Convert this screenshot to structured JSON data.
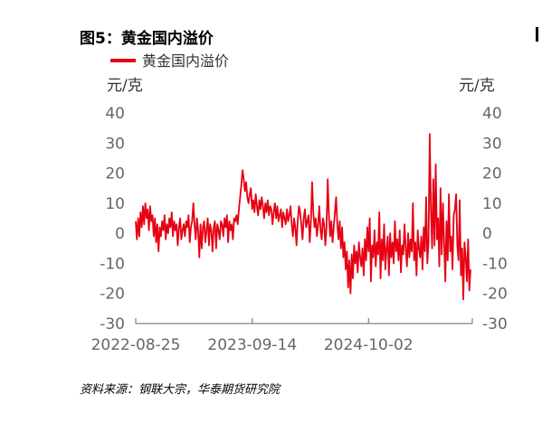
{
  "title": "图5：黄金国内溢价",
  "source": "资料来源：钢联大宗，华泰期货研究院",
  "chart_data": {
    "type": "line",
    "ylabel_left": "元/克",
    "ylabel_right": "元/克",
    "ylim": [
      -30,
      40
    ],
    "yticks": [
      "40",
      "30",
      "20",
      "10",
      "0",
      "-10",
      "-20",
      "-30"
    ],
    "xticks": [
      "2022-08-25",
      "2023-09-14",
      "2024-10-02"
    ],
    "legend": "top-left",
    "series": [
      {
        "name": "黄金国内溢价",
        "color": "#e60012",
        "x_range": [
          "2022-08-25",
          "2025-09-10"
        ],
        "values": [
          4,
          -2,
          5,
          -1,
          7,
          2,
          9,
          3,
          10,
          5,
          8,
          1,
          9,
          4,
          6,
          -1,
          5,
          -3,
          3,
          -6,
          2,
          -1,
          4,
          1,
          6,
          -2,
          3,
          0,
          5,
          2,
          7,
          -1,
          4,
          1,
          3,
          -4,
          2,
          5,
          -2,
          1,
          3,
          -1,
          4,
          2,
          6,
          -3,
          2,
          4,
          10,
          3,
          -2,
          5,
          1,
          -8,
          3,
          -5,
          2,
          4,
          -3,
          1,
          5,
          -4,
          3,
          1,
          -6,
          2,
          4,
          -5,
          3,
          1,
          -2,
          4,
          3,
          -1,
          5,
          2,
          6,
          -3,
          4,
          1,
          3,
          -2,
          5,
          4,
          6,
          3,
          8,
          12,
          16,
          21,
          18,
          14,
          17,
          12,
          10,
          13,
          15,
          8,
          11,
          7,
          13,
          9,
          6,
          11,
          8,
          12,
          9,
          5,
          10,
          7,
          11,
          6,
          9,
          8,
          3,
          7,
          10,
          5,
          9,
          4,
          6,
          8,
          2,
          7,
          5,
          3,
          8,
          4,
          6,
          9,
          3,
          -1,
          5,
          2,
          -4,
          4,
          9,
          7,
          3,
          -2,
          5,
          8,
          2,
          4,
          6,
          -3,
          4,
          17,
          7,
          2,
          5,
          -1,
          3,
          9,
          1,
          -2,
          5,
          3,
          -4,
          2,
          18,
          6,
          -1,
          4,
          -3,
          2,
          7,
          12,
          3,
          -2,
          4,
          -5,
          2,
          -8,
          -3,
          -12,
          -6,
          -18,
          -9,
          -20,
          -7,
          -15,
          -4,
          -10,
          -6,
          -13,
          -3,
          -8,
          -11,
          -5,
          -14,
          -2,
          -9,
          2,
          -6,
          5,
          -16,
          -4,
          -8,
          1,
          -11,
          -3,
          -7,
          7,
          -15,
          -2,
          -9,
          3,
          -12,
          -5,
          -1,
          -14,
          0,
          -8,
          -3,
          -10,
          4,
          -6,
          -2,
          -9,
          1,
          -13,
          -4,
          -7,
          3,
          -5,
          -11,
          0,
          -8,
          -2,
          -6,
          10,
          -9,
          -3,
          -14,
          1,
          -5,
          -8,
          -1,
          -12,
          2,
          -6,
          12,
          -10,
          -3,
          33,
          8,
          -5,
          18,
          -4,
          23,
          -2,
          5,
          -11,
          15,
          -7,
          10,
          -3,
          -16,
          4,
          -9,
          13,
          -6,
          -1,
          -12,
          6,
          8,
          13,
          -4,
          -9,
          11,
          -14,
          -5,
          -22,
          -3,
          -8,
          -16,
          -2,
          -19,
          -12
        ]
      }
    ]
  }
}
